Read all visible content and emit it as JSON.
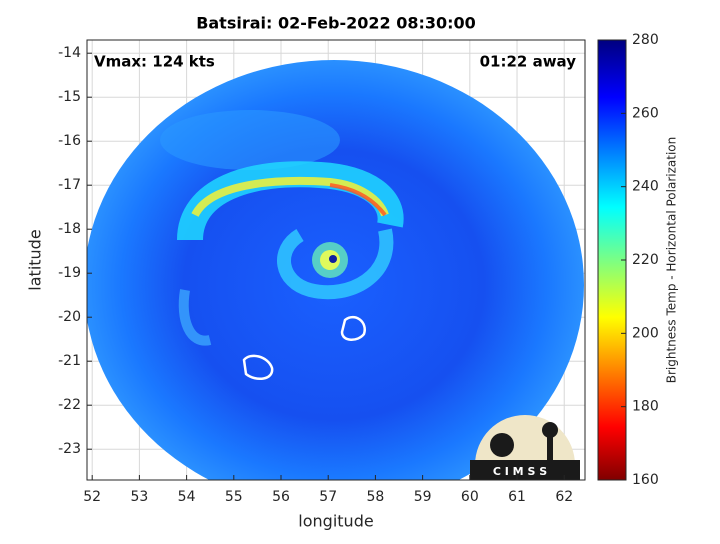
{
  "chart_data": {
    "type": "image",
    "title": "Batsirai: 02-Feb-2022 08:30:00",
    "annotations": [
      "Vmax: 124 kts",
      "01:22 away"
    ],
    "xlabel": "longitude",
    "ylabel": "latitude",
    "xlim": [
      51.89,
      62.44
    ],
    "ylim": [
      -23.7,
      -13.7
    ],
    "xticks": [
      52,
      53,
      54,
      55,
      56,
      57,
      58,
      59,
      60,
      61,
      62
    ],
    "yticks": [
      -14,
      -15,
      -16,
      -17,
      -18,
      -19,
      -20,
      -21,
      -22,
      -23
    ],
    "grid": true,
    "colorbar": {
      "label": "Brightness Temp - Horizontal Polarization",
      "lim": [
        160,
        280
      ],
      "ticks": [
        160,
        180,
        200,
        220,
        240,
        260,
        280
      ]
    },
    "logo": "C I M S S"
  }
}
